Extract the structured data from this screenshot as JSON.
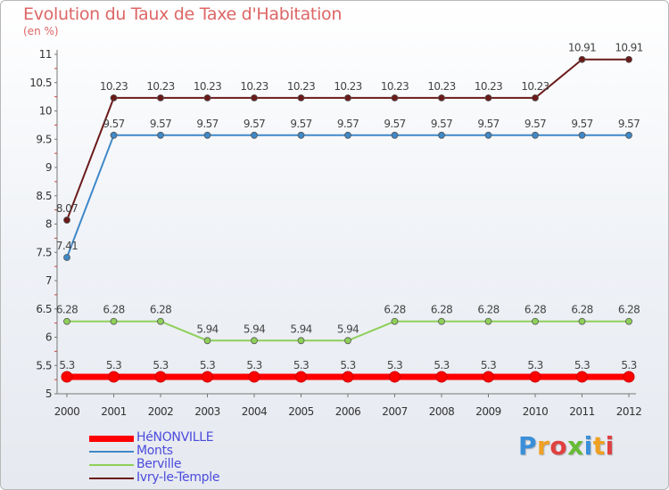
{
  "chart_data": {
    "type": "line",
    "title": "Evolution du Taux de Taxe d'Habitation",
    "ylabel": "(en %)",
    "xlabel": "",
    "x": [
      "2000",
      "2001",
      "2002",
      "2003",
      "2004",
      "2005",
      "2006",
      "2007",
      "2008",
      "2009",
      "2010",
      "2011",
      "2012"
    ],
    "ylim": [
      5,
      11
    ],
    "yticks": [
      5,
      5.5,
      6,
      6.5,
      7,
      7.5,
      8,
      8.5,
      9,
      9.5,
      10,
      10.5,
      11
    ],
    "ytick_labels": [
      "5",
      "5.5",
      "6",
      "6.5",
      "7",
      "7.5",
      "8",
      "8.5",
      "9",
      "9.5",
      "10",
      "10.5",
      "11"
    ],
    "grid": false,
    "legend_position": "bottom-left",
    "series": [
      {
        "name": "HéNONVILLE",
        "color": "#ff0000",
        "values": [
          5.3,
          5.3,
          5.3,
          5.3,
          5.3,
          5.3,
          5.3,
          5.3,
          5.3,
          5.3,
          5.3,
          5.3,
          5.3
        ],
        "labels": [
          "5.3",
          "5.3",
          "5.3",
          "5.3",
          "5.3",
          "5.3",
          "5.3",
          "5.3",
          "5.3",
          "5.3",
          "5.3",
          "5.3",
          "5.3"
        ]
      },
      {
        "name": "Monts",
        "color": "#3f88c8",
        "values": [
          7.41,
          9.57,
          9.57,
          9.57,
          9.57,
          9.57,
          9.57,
          9.57,
          9.57,
          9.57,
          9.57,
          9.57,
          9.57
        ],
        "labels": [
          "7.41",
          "9.57",
          "9.57",
          "9.57",
          "9.57",
          "9.57",
          "9.57",
          "9.57",
          "9.57",
          "9.57",
          "9.57",
          "9.57",
          "9.57"
        ]
      },
      {
        "name": "Berville",
        "color": "#8ed05a",
        "values": [
          6.28,
          6.28,
          6.28,
          5.94,
          5.94,
          5.94,
          5.94,
          6.28,
          6.28,
          6.28,
          6.28,
          6.28,
          6.28
        ],
        "labels": [
          "6.28",
          "6.28",
          "6.28",
          "5.94",
          "5.94",
          "5.94",
          "5.94",
          "6.28",
          "6.28",
          "6.28",
          "6.28",
          "6.28",
          "6.28"
        ]
      },
      {
        "name": "Ivry-le-Temple",
        "color": "#6b1a1a",
        "values": [
          8.07,
          10.23,
          10.23,
          10.23,
          10.23,
          10.23,
          10.23,
          10.23,
          10.23,
          10.23,
          10.23,
          10.91,
          10.91
        ],
        "labels": [
          "8.07",
          "10.23",
          "10.23",
          "10.23",
          "10.23",
          "10.23",
          "10.23",
          "10.23",
          "10.23",
          "10.23",
          "10.23",
          "10.91",
          "10.91"
        ]
      }
    ]
  },
  "logo": {
    "letters": [
      "P",
      "r",
      "o",
      "x",
      "i",
      "t",
      "i"
    ],
    "colors": [
      "#3a8fd8",
      "#f0a020",
      "#e04040",
      "#66bb33",
      "#3a8fd8",
      "#f0a020",
      "#e04040"
    ]
  }
}
